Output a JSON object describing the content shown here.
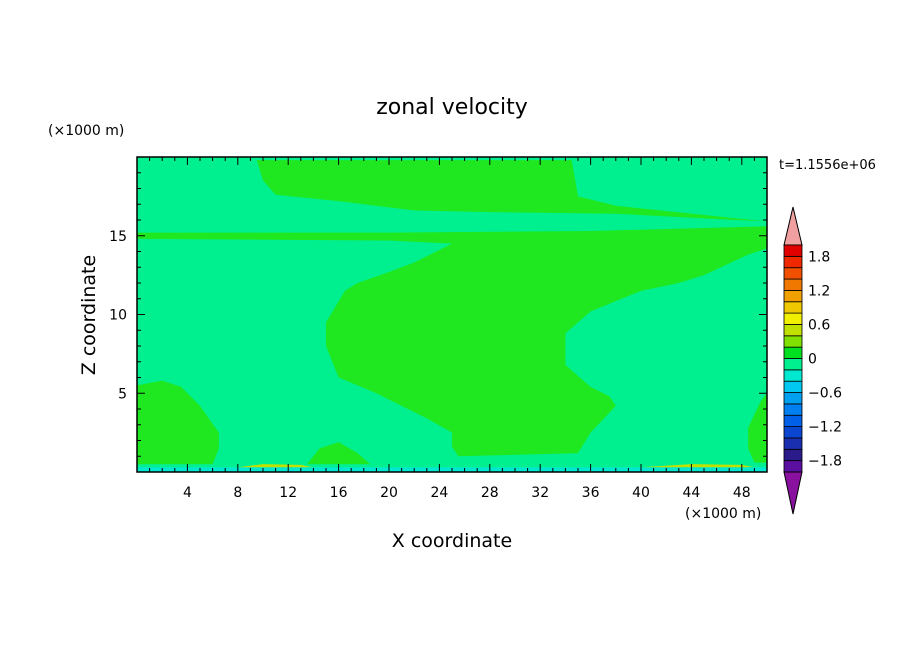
{
  "chart_data": {
    "type": "heatmap",
    "title": "zonal velocity",
    "xlabel": "X coordinate",
    "ylabel": "Z coordinate",
    "x_unit": "(×1000 m)",
    "y_unit": "(×1000 m)",
    "time_label": "t=1.1556e+06",
    "xlim": [
      0,
      50
    ],
    "ylim": [
      0,
      20
    ],
    "x_ticks": [
      "4",
      "8",
      "12",
      "16",
      "20",
      "24",
      "28",
      "32",
      "36",
      "40",
      "44",
      "48"
    ],
    "y_ticks": [
      "5",
      "10",
      "15"
    ],
    "colorbar": {
      "levels": [
        -2.0,
        -1.8,
        -1.6,
        -1.4,
        -1.2,
        -1.0,
        -0.8,
        -0.6,
        -0.4,
        -0.2,
        0.0,
        0.2,
        0.4,
        0.6,
        0.8,
        1.0,
        1.2,
        1.4,
        1.6,
        1.8,
        2.0
      ],
      "colors": [
        "#5a0fa0",
        "#2a1a8a",
        "#1a2fb0",
        "#0a46d0",
        "#0060e8",
        "#0080f0",
        "#00a0f0",
        "#00c8f0",
        "#00e8d0",
        "#00f090",
        "#00e020",
        "#80e000",
        "#c0e000",
        "#f0f000",
        "#f0c800",
        "#f0a000",
        "#f07800",
        "#f05000",
        "#f02800",
        "#e00000"
      ],
      "labels": [
        "1.8",
        "1.2",
        "0.6",
        "0",
        "−0.6",
        "−1.2",
        "−1.8"
      ],
      "label_values": [
        1.8,
        1.2,
        0.6,
        0.0,
        -0.6,
        -1.2,
        -1.8
      ],
      "over_color": "#f0a0a0",
      "under_color": "#8a10a0"
    },
    "fields": {
      "background_color": "#00f090",
      "regions": [
        {
          "name": "upper-band",
          "level_range": [
            0.0,
            0.2
          ],
          "color": "#20e820",
          "points": [
            [
              9.5,
              19.8
            ],
            [
              34.5,
              19.8
            ],
            [
              35,
              17.5
            ],
            [
              38,
              16.9
            ],
            [
              50,
              15.9
            ],
            [
              38,
              16.4
            ],
            [
              28,
              16.5
            ],
            [
              22,
              16.6
            ],
            [
              16,
              17.2
            ],
            [
              11,
              17.6
            ],
            [
              10,
              18.5
            ]
          ]
        },
        {
          "name": "mid-jet",
          "level_range": [
            0.0,
            0.2
          ],
          "color": "#20e820",
          "points": [
            [
              0,
              15.2
            ],
            [
              20,
              15.2
            ],
            [
              36,
              15.3
            ],
            [
              50,
              15.6
            ],
            [
              50,
              14.2
            ],
            [
              48.5,
              13.8
            ],
            [
              45,
              12.5
            ],
            [
              43,
              12
            ],
            [
              40,
              11.5
            ],
            [
              36,
              10.2
            ],
            [
              34,
              8.8
            ],
            [
              34,
              6.8
            ],
            [
              36,
              5.4
            ],
            [
              37.5,
              4.8
            ],
            [
              38,
              4.2
            ],
            [
              36,
              2.5
            ],
            [
              35,
              1.2
            ],
            [
              25.5,
              1.0
            ],
            [
              25,
              1.6
            ],
            [
              25,
              2.5
            ],
            [
              23,
              3.4
            ],
            [
              21,
              4.2
            ],
            [
              19,
              5.0
            ],
            [
              16,
              6.0
            ],
            [
              15,
              8.0
            ],
            [
              15,
              9.5
            ],
            [
              16.5,
              11.5
            ],
            [
              17.5,
              12
            ],
            [
              20,
              12.7
            ],
            [
              22,
              13.3
            ],
            [
              25,
              14.5
            ],
            [
              20,
              14.7
            ],
            [
              0,
              14.8
            ]
          ]
        },
        {
          "name": "left-lobe",
          "level_range": [
            0.0,
            0.2
          ],
          "color": "#20e820",
          "points": [
            [
              0,
              5.5
            ],
            [
              2,
              5.8
            ],
            [
              3.5,
              5.4
            ],
            [
              5,
              4.2
            ],
            [
              6.5,
              2.5
            ],
            [
              6.5,
              1.5
            ],
            [
              6,
              0.5
            ],
            [
              0,
              0.5
            ]
          ]
        },
        {
          "name": "bottom-bump",
          "level_range": [
            0.0,
            0.2
          ],
          "color": "#20e820",
          "points": [
            [
              13.5,
              0.5
            ],
            [
              14.5,
              1.5
            ],
            [
              16,
              1.9
            ],
            [
              17.5,
              1.2
            ],
            [
              18.5,
              0.5
            ]
          ]
        },
        {
          "name": "right-lobe",
          "level_range": [
            0.0,
            0.2
          ],
          "color": "#20e820",
          "points": [
            [
              50,
              5.0
            ],
            [
              49.5,
              4.5
            ],
            [
              48.5,
              2.8
            ],
            [
              48.5,
              1.5
            ],
            [
              49,
              0.6
            ],
            [
              50,
              0.6
            ]
          ]
        },
        {
          "name": "surface-positive",
          "level_range": [
            0.2,
            0.6
          ],
          "color": "#c0e000",
          "points": [
            [
              8,
              0.3
            ],
            [
              10,
              0.5
            ],
            [
              13,
              0.45
            ],
            [
              14,
              0.3
            ],
            [
              10,
              0.2
            ]
          ]
        },
        {
          "name": "surface-positive-right",
          "level_range": [
            0.2,
            0.6
          ],
          "color": "#c0e000",
          "points": [
            [
              40,
              0.3
            ],
            [
              44,
              0.5
            ],
            [
              48,
              0.45
            ],
            [
              49,
              0.3
            ],
            [
              44,
              0.2
            ]
          ]
        },
        {
          "name": "surface-negative",
          "level_range": [
            -0.4,
            -0.2
          ],
          "color": "#00e8d0",
          "points": [
            [
              0,
              0.3
            ],
            [
              50,
              0.3
            ],
            [
              50,
              0
            ],
            [
              0,
              0
            ]
          ]
        }
      ]
    }
  }
}
